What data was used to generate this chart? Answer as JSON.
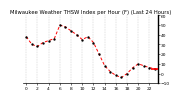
{
  "title": "Milwaukee Weather THSW Index per Hour (F) (Last 24 Hours)",
  "hours": [
    0,
    1,
    2,
    3,
    4,
    5,
    6,
    7,
    8,
    9,
    10,
    11,
    12,
    13,
    14,
    15,
    16,
    17,
    18,
    19,
    20,
    21,
    22,
    23
  ],
  "values": [
    38,
    30,
    28,
    32,
    34,
    36,
    50,
    48,
    44,
    40,
    35,
    38,
    32,
    20,
    8,
    2,
    -2,
    -4,
    0,
    6,
    10,
    8,
    6,
    5
  ],
  "current_value": 5,
  "ylim": [
    -10,
    60
  ],
  "yticks": [
    60,
    50,
    40,
    30,
    20,
    10,
    0,
    -10
  ],
  "xtick_step": 2,
  "line_color": "#ff0000",
  "marker_color": "#000000",
  "bg_color": "#ffffff",
  "grid_color": "#b0b0b0",
  "title_fontsize": 3.8,
  "tick_fontsize": 3.2,
  "line_width": 0.7,
  "marker_size": 1.4
}
